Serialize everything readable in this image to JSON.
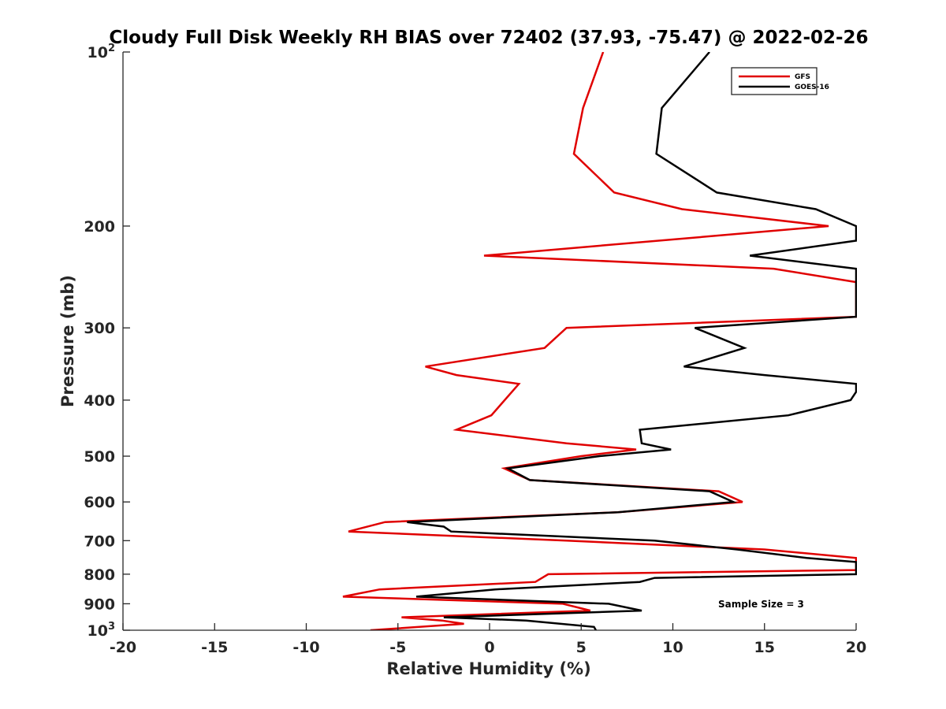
{
  "chart_data": {
    "type": "line",
    "title": "Cloudy Full Disk Weekly RH BIAS over 72402 (37.93, -75.47) @ 2022-02-26",
    "xlabel": "Relative Humidity (%)",
    "ylabel": "Pressure (mb)",
    "xlim": [
      -20,
      20
    ],
    "ylim": [
      100,
      1000
    ],
    "y_scale": "log",
    "y_reversed": true,
    "grid": false,
    "legend_position": "top-right",
    "x_ticks": [
      "-20",
      "-15",
      "-10",
      "-5",
      "0",
      "5",
      "10",
      "15",
      "20"
    ],
    "y_ticks": [
      {
        "value": 100,
        "base": "10",
        "exp": "2"
      },
      {
        "value": 200,
        "label": "200"
      },
      {
        "value": 300,
        "label": "300"
      },
      {
        "value": 400,
        "label": "400"
      },
      {
        "value": 500,
        "label": "500"
      },
      {
        "value": 600,
        "label": "600"
      },
      {
        "value": 700,
        "label": "700"
      },
      {
        "value": 800,
        "label": "800"
      },
      {
        "value": 900,
        "label": "900"
      },
      {
        "value": 1000,
        "base": "10",
        "exp": "3"
      }
    ],
    "annotation": "Sample Size = 3",
    "series": [
      {
        "name": "GFS",
        "color": "#e00000",
        "points": [
          [
            6.2,
            100
          ],
          [
            5.1,
            125
          ],
          [
            4.6,
            150
          ],
          [
            6.8,
            175
          ],
          [
            10.5,
            187
          ],
          [
            18.5,
            200
          ],
          [
            -0.3,
            225
          ],
          [
            15.5,
            237
          ],
          [
            20.0,
            250
          ],
          [
            20.0,
            287
          ],
          [
            4.2,
            300
          ],
          [
            3.0,
            325
          ],
          [
            -3.5,
            350
          ],
          [
            -1.8,
            362
          ],
          [
            1.6,
            375
          ],
          [
            0.1,
            425
          ],
          [
            -1.8,
            450
          ],
          [
            4.2,
            475
          ],
          [
            8.0,
            487
          ],
          [
            5.0,
            500
          ],
          [
            0.8,
            525
          ],
          [
            2.2,
            550
          ],
          [
            12.5,
            575
          ],
          [
            13.8,
            600
          ],
          [
            7.0,
            625
          ],
          [
            -5.7,
            650
          ],
          [
            -7.7,
            675
          ],
          [
            4.2,
            700
          ],
          [
            15.0,
            725
          ],
          [
            20.0,
            750
          ],
          [
            20.0,
            787
          ],
          [
            3.2,
            800
          ],
          [
            2.5,
            825
          ],
          [
            -6.0,
            850
          ],
          [
            -8.0,
            875
          ],
          [
            4.0,
            900
          ],
          [
            5.5,
            925
          ],
          [
            -4.8,
            950
          ],
          [
            -2.6,
            962
          ],
          [
            -1.4,
            975
          ],
          [
            -6.5,
            1000
          ]
        ]
      },
      {
        "name": "GOES-16",
        "color": "#000000",
        "points": [
          [
            12.0,
            100
          ],
          [
            9.4,
            125
          ],
          [
            9.1,
            150
          ],
          [
            12.4,
            175
          ],
          [
            17.8,
            187
          ],
          [
            20.0,
            200
          ],
          [
            20.0,
            212
          ],
          [
            14.2,
            225
          ],
          [
            20.0,
            237
          ],
          [
            20.0,
            287
          ],
          [
            11.2,
            300
          ],
          [
            13.9,
            325
          ],
          [
            10.6,
            350
          ],
          [
            15.0,
            362
          ],
          [
            20.0,
            375
          ],
          [
            20.0,
            387
          ],
          [
            19.7,
            400
          ],
          [
            16.3,
            425
          ],
          [
            8.2,
            450
          ],
          [
            8.3,
            475
          ],
          [
            9.9,
            487
          ],
          [
            6.0,
            500
          ],
          [
            1.0,
            525
          ],
          [
            2.2,
            550
          ],
          [
            12.0,
            575
          ],
          [
            13.3,
            600
          ],
          [
            7.0,
            625
          ],
          [
            -4.5,
            650
          ],
          [
            -2.5,
            662
          ],
          [
            -2.1,
            675
          ],
          [
            9.0,
            700
          ],
          [
            13.5,
            725
          ],
          [
            17.3,
            750
          ],
          [
            20.0,
            762
          ],
          [
            20.0,
            800
          ],
          [
            9.0,
            812
          ],
          [
            8.2,
            825
          ],
          [
            0.3,
            850
          ],
          [
            -4.0,
            875
          ],
          [
            6.5,
            900
          ],
          [
            8.3,
            925
          ],
          [
            -2.5,
            950
          ],
          [
            2.0,
            962
          ],
          [
            5.7,
            987
          ],
          [
            5.8,
            1000
          ]
        ]
      }
    ]
  }
}
